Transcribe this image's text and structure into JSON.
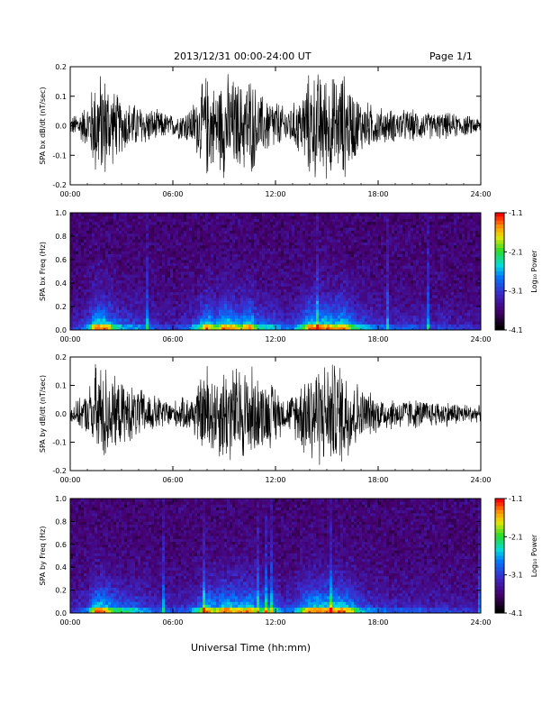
{
  "header": {
    "date_range": "2013/12/31   00:00-24:00 UT",
    "page": "Page 1/1"
  },
  "xlabel": "Universal Time (hh:mm)",
  "x_ticks": [
    "00:00",
    "06:00",
    "12:00",
    "18:00",
    "24:00"
  ],
  "colorbar": {
    "label": "Log₁₀ Power",
    "ticks": [
      "-1.1",
      "-2.1",
      "-3.1",
      "-4.1"
    ]
  },
  "chart_data": [
    {
      "type": "line",
      "ylabel": "SPA bx dB/dt (nT/sec)",
      "y_ticks": [
        "0.2",
        "0.1",
        "0.0",
        "-0.1",
        "-0.2"
      ],
      "ylim": [
        -0.2,
        0.2
      ],
      "xlim_hours": [
        0,
        24
      ],
      "envelope": {
        "hours": [
          0,
          1,
          1.5,
          2,
          2.5,
          3,
          4,
          5,
          6,
          7,
          7.5,
          8,
          8.5,
          9,
          10,
          10.5,
          11,
          12,
          12.5,
          13,
          13.5,
          14,
          14.5,
          15,
          15.5,
          16,
          16.5,
          17,
          18,
          19,
          20,
          21,
          22,
          23,
          24
        ],
        "amplitude": [
          0.03,
          0.08,
          0.2,
          0.2,
          0.14,
          0.1,
          0.08,
          0.06,
          0.04,
          0.07,
          0.12,
          0.2,
          0.14,
          0.2,
          0.16,
          0.2,
          0.12,
          0.1,
          0.07,
          0.08,
          0.12,
          0.2,
          0.2,
          0.2,
          0.18,
          0.2,
          0.14,
          0.1,
          0.07,
          0.06,
          0.06,
          0.05,
          0.05,
          0.04,
          0.03
        ]
      }
    },
    {
      "type": "heatmap",
      "ylabel": "SPA bx Freq (Hz)",
      "y_ticks": [
        "1.0",
        "0.8",
        "0.6",
        "0.4",
        "0.2",
        "0.0"
      ],
      "ylim": [
        0,
        1.0
      ],
      "xlim_hours": [
        0,
        24
      ],
      "zlim": [
        -4.1,
        -1.1
      ]
    },
    {
      "type": "line",
      "ylabel": "SPA by dB/dt (nT/sec)",
      "y_ticks": [
        "0.2",
        "0.1",
        "0.0",
        "-0.1",
        "-0.2"
      ],
      "ylim": [
        -0.2,
        0.2
      ],
      "xlim_hours": [
        0,
        24
      ],
      "envelope": {
        "hours": [
          0,
          1,
          1.5,
          2,
          2.5,
          3,
          4,
          5,
          6,
          7,
          7.5,
          8,
          8.5,
          9,
          10,
          10.5,
          11,
          12,
          12.5,
          13,
          13.5,
          14,
          14.5,
          15,
          15.5,
          16,
          16.5,
          17,
          18,
          19,
          20,
          21,
          22,
          23,
          24
        ],
        "amplitude": [
          0.03,
          0.08,
          0.2,
          0.2,
          0.14,
          0.12,
          0.1,
          0.07,
          0.05,
          0.07,
          0.12,
          0.2,
          0.15,
          0.2,
          0.18,
          0.2,
          0.14,
          0.12,
          0.06,
          0.08,
          0.14,
          0.2,
          0.2,
          0.2,
          0.2,
          0.2,
          0.16,
          0.1,
          0.07,
          0.06,
          0.06,
          0.05,
          0.05,
          0.04,
          0.03
        ]
      }
    },
    {
      "type": "heatmap",
      "ylabel": "SPA by Freq (Hz)",
      "y_ticks": [
        "1.0",
        "0.8",
        "0.6",
        "0.4",
        "0.2",
        "0.0"
      ],
      "ylim": [
        0,
        1.0
      ],
      "xlim_hours": [
        0,
        24
      ],
      "zlim": [
        -4.1,
        -1.1
      ]
    }
  ]
}
